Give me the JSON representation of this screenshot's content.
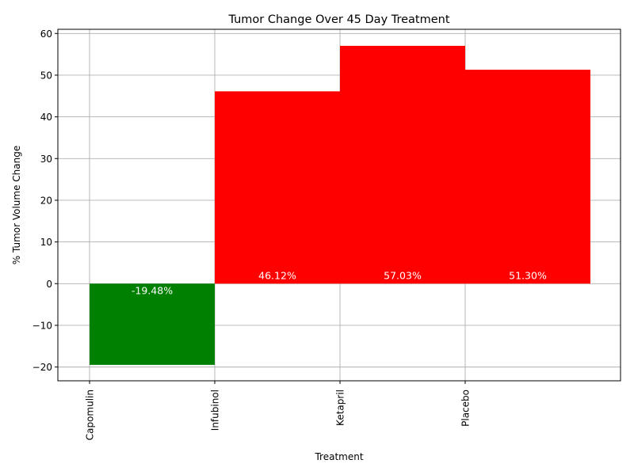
{
  "chart_data": {
    "type": "bar",
    "title": "Tumor Change Over 45 Day Treatment",
    "xlabel": "Treatment",
    "ylabel": "% Tumor Volume Change",
    "categories": [
      "Capomulin",
      "Infubinol",
      "Ketapril",
      "Placebo"
    ],
    "values": [
      -19.48,
      46.12,
      57.03,
      51.3
    ],
    "value_labels": [
      "-19.48%",
      "46.12%",
      "57.03%",
      "51.30%"
    ],
    "ylim": [
      -23.3,
      61.0
    ],
    "yticks": [
      -20,
      -10,
      0,
      10,
      20,
      30,
      40,
      50,
      60
    ],
    "ytick_labels": [
      "−20",
      "−10",
      "0",
      "10",
      "20",
      "30",
      "40",
      "50",
      "60"
    ],
    "grid": true,
    "colors": {
      "positive": "#ff0000",
      "negative": "#008000",
      "grid": "#b0b0b0"
    }
  }
}
